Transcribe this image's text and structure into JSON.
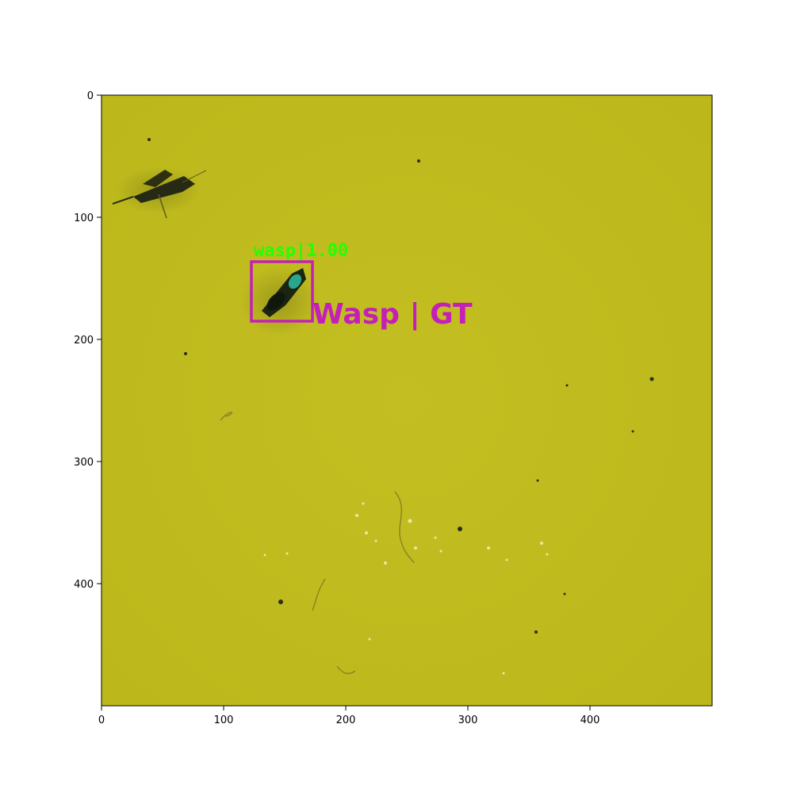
{
  "image": {
    "background_color": "#c1bd1f",
    "subject": "yellow sticky trap with insects"
  },
  "axes": {
    "x_ticks": [
      "0",
      "100",
      "200",
      "300",
      "400"
    ],
    "y_ticks": [
      "0",
      "100",
      "200",
      "300",
      "400"
    ]
  },
  "annotations": {
    "detection_label": "wasp|1.00",
    "detection_color": "#22ff00",
    "ground_truth_label": "Wasp | GT",
    "ground_truth_color": "#c41fb8"
  }
}
